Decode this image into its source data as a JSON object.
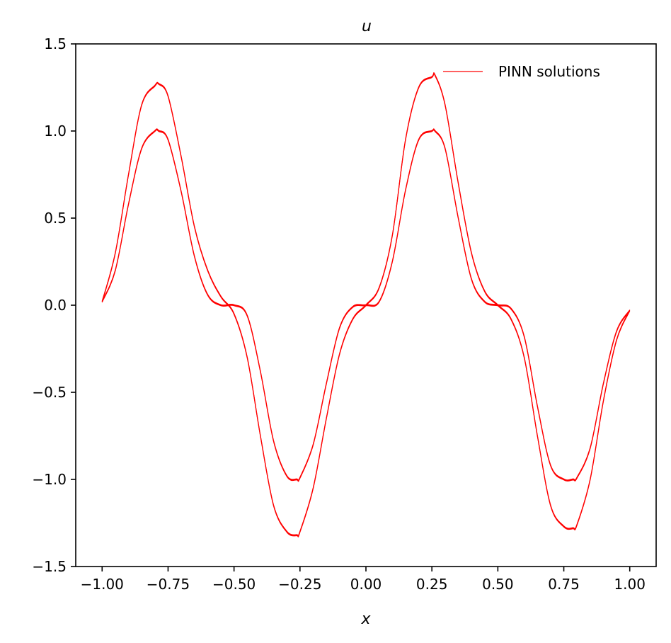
{
  "chart_data": {
    "type": "line",
    "title": "u",
    "xlabel": "x",
    "ylabel": "",
    "xlim": [
      -1.1,
      1.1
    ],
    "ylim": [
      -1.5,
      1.5
    ],
    "x_ticks": [
      "−1.00",
      "−0.75",
      "−0.50",
      "−0.25",
      "0.00",
      "0.25",
      "0.50",
      "0.75",
      "1.00"
    ],
    "x_tick_values": [
      -1.0,
      -0.75,
      -0.5,
      -0.25,
      0.0,
      0.25,
      0.5,
      0.75,
      1.0
    ],
    "y_ticks": [
      "−1.5",
      "−1.0",
      "−0.5",
      "0.0",
      "0.5",
      "1.0",
      "1.5"
    ],
    "y_tick_values": [
      -1.5,
      -1.0,
      -0.5,
      0.0,
      0.5,
      1.0,
      1.5
    ],
    "grid": false,
    "legend": {
      "position": "top-right",
      "entries": [
        "PINN solutions"
      ]
    },
    "line_color": "#ff0000",
    "series": [
      {
        "label": "PINN solutions",
        "x": [
          -1.0,
          -0.95,
          -0.9,
          -0.85,
          -0.8,
          -0.785,
          -0.75,
          -0.7,
          -0.65,
          -0.6,
          -0.55,
          -0.5,
          -0.45,
          -0.4,
          -0.35,
          -0.3,
          -0.262,
          -0.25,
          -0.2,
          -0.15,
          -0.1,
          -0.05,
          0.0,
          0.05,
          0.1,
          0.15,
          0.2,
          0.25,
          0.262,
          0.3,
          0.35,
          0.4,
          0.45,
          0.5,
          0.55,
          0.6,
          0.65,
          0.7,
          0.75,
          0.785,
          0.8,
          0.85,
          0.9,
          0.95,
          1.0
        ],
        "y": [
          0.02,
          0.3,
          0.75,
          1.15,
          1.26,
          1.27,
          1.2,
          0.85,
          0.45,
          0.2,
          0.05,
          -0.05,
          -0.3,
          -0.75,
          -1.15,
          -1.3,
          -1.32,
          -1.3,
          -1.05,
          -0.65,
          -0.28,
          -0.08,
          0.0,
          0.1,
          0.4,
          0.95,
          1.25,
          1.31,
          1.32,
          1.15,
          0.7,
          0.3,
          0.08,
          0.0,
          -0.08,
          -0.3,
          -0.75,
          -1.15,
          -1.27,
          -1.28,
          -1.26,
          -1.0,
          -0.55,
          -0.2,
          -0.03
        ]
      },
      {
        "label": "PINN solutions",
        "x": [
          -1.0,
          -0.95,
          -0.9,
          -0.85,
          -0.8,
          -0.785,
          -0.75,
          -0.7,
          -0.65,
          -0.6,
          -0.55,
          -0.5,
          -0.45,
          -0.4,
          -0.35,
          -0.3,
          -0.262,
          -0.25,
          -0.2,
          -0.15,
          -0.1,
          -0.05,
          0.0,
          0.05,
          0.1,
          0.15,
          0.2,
          0.25,
          0.262,
          0.3,
          0.35,
          0.4,
          0.45,
          0.5,
          0.55,
          0.6,
          0.65,
          0.7,
          0.75,
          0.785,
          0.8,
          0.85,
          0.9,
          0.95,
          1.0
        ],
        "y": [
          0.02,
          0.2,
          0.58,
          0.9,
          1.0,
          1.0,
          0.95,
          0.65,
          0.28,
          0.06,
          0.0,
          0.0,
          -0.06,
          -0.38,
          -0.78,
          -0.98,
          -1.0,
          -0.99,
          -0.8,
          -0.45,
          -0.13,
          -0.01,
          0.0,
          0.02,
          0.25,
          0.66,
          0.95,
          1.0,
          1.0,
          0.9,
          0.5,
          0.15,
          0.02,
          0.0,
          -0.02,
          -0.18,
          -0.58,
          -0.92,
          -1.0,
          -1.0,
          -0.99,
          -0.82,
          -0.45,
          -0.15,
          -0.03
        ]
      }
    ]
  }
}
